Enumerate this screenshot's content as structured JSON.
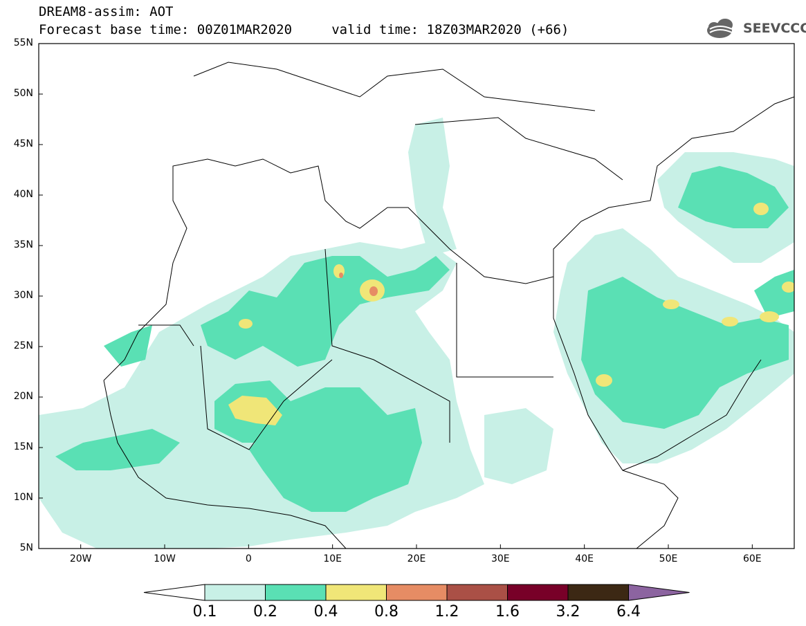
{
  "header": {
    "title_line1": "DREAM8-assim: AOT",
    "title_line2": "Forecast base time: 00Z01MAR2020     valid time: 18Z03MAR2020 (+66)",
    "logo_text": "SEEVCCC"
  },
  "map": {
    "projection": "lat-lon",
    "lon_range": [
      -25,
      65
    ],
    "lat_range": [
      5,
      55
    ],
    "lat_labels": [
      "55N",
      "50N",
      "45N",
      "40N",
      "35N",
      "30N",
      "25N",
      "20N",
      "15N",
      "10N",
      "5N"
    ],
    "lon_labels": [
      "20W",
      "10W",
      "0",
      "10E",
      "20E",
      "30E",
      "40E",
      "50E",
      "60E"
    ],
    "field": "AOT"
  },
  "colorbar": {
    "colors": [
      "#ffffff",
      "#c8f0e6",
      "#5ae0b4",
      "#f0e678",
      "#e68c64",
      "#aa5046",
      "#780028",
      "#3c2814",
      "#8c64a0"
    ],
    "labels": [
      "0.1",
      "0.2",
      "0.4",
      "0.8",
      "1.2",
      "1.6",
      "3.2",
      "6.4"
    ]
  }
}
